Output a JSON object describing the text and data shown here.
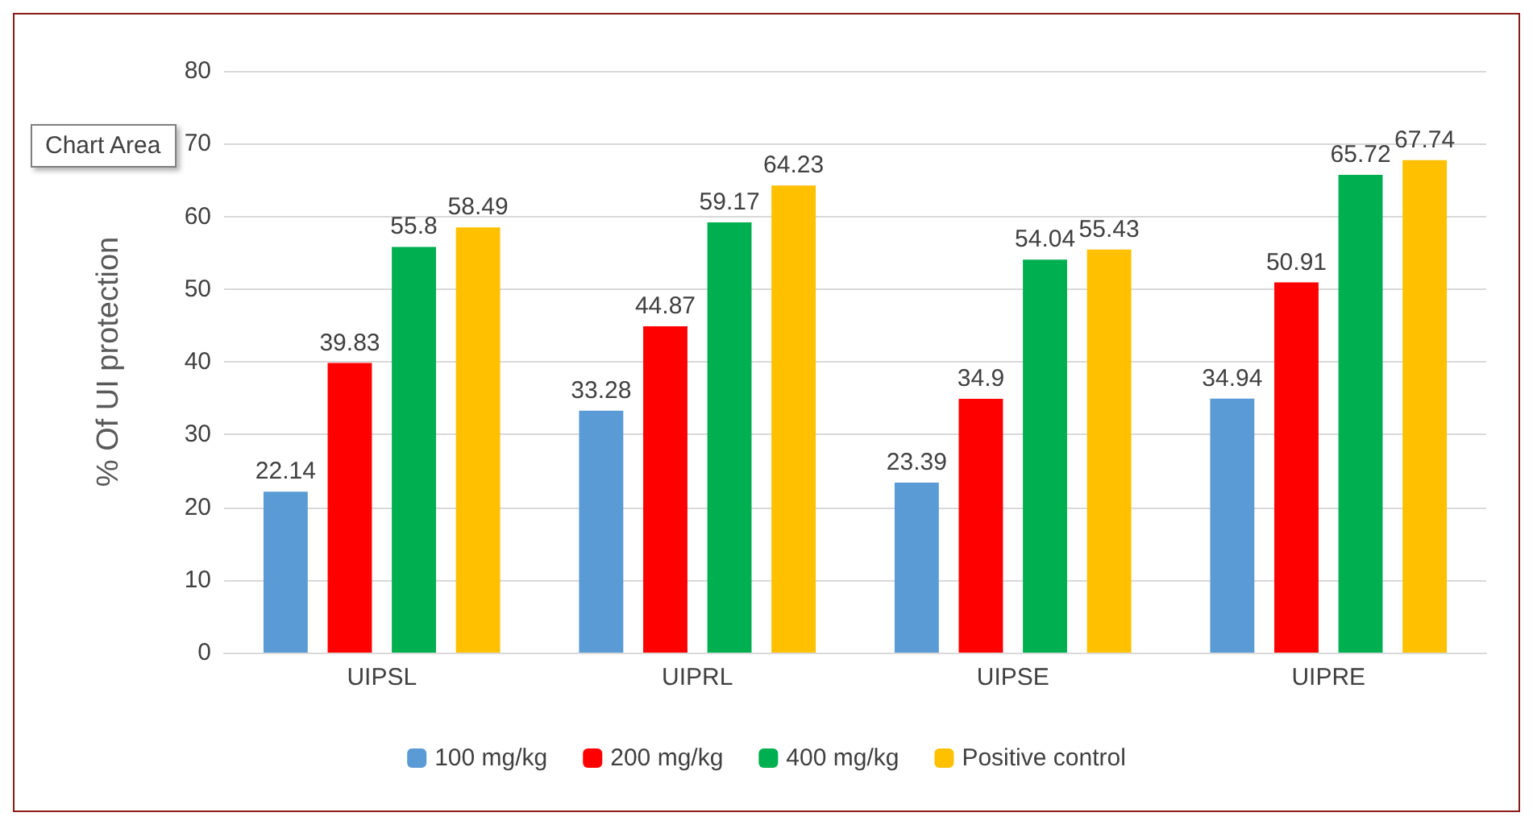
{
  "chart_data": {
    "type": "bar",
    "ylabel": "% Of UI protection",
    "annotations": [
      "Chart Area"
    ],
    "categories": [
      "UIPSL",
      "UIPRL",
      "UIPSE",
      "UIPRE"
    ],
    "series": [
      {
        "name": "100 mg/kg",
        "color": "#5b9bd5",
        "values": [
          22.14,
          33.28,
          23.39,
          34.94
        ]
      },
      {
        "name": "200 mg/kg",
        "color": "#ff0000",
        "values": [
          39.83,
          44.87,
          34.9,
          50.91
        ]
      },
      {
        "name": "400 mg/kg",
        "color": "#00b050",
        "values": [
          55.8,
          59.17,
          54.04,
          65.72
        ]
      },
      {
        "name": "Positive control",
        "color": "#ffc000",
        "values": [
          58.49,
          64.23,
          55.43,
          67.74
        ]
      }
    ],
    "ylim": [
      0,
      80
    ],
    "yticks": [
      0,
      10,
      20,
      30,
      40,
      50,
      60,
      70,
      80
    ],
    "grid": "y",
    "legend": "bottom",
    "data_labels": true
  }
}
